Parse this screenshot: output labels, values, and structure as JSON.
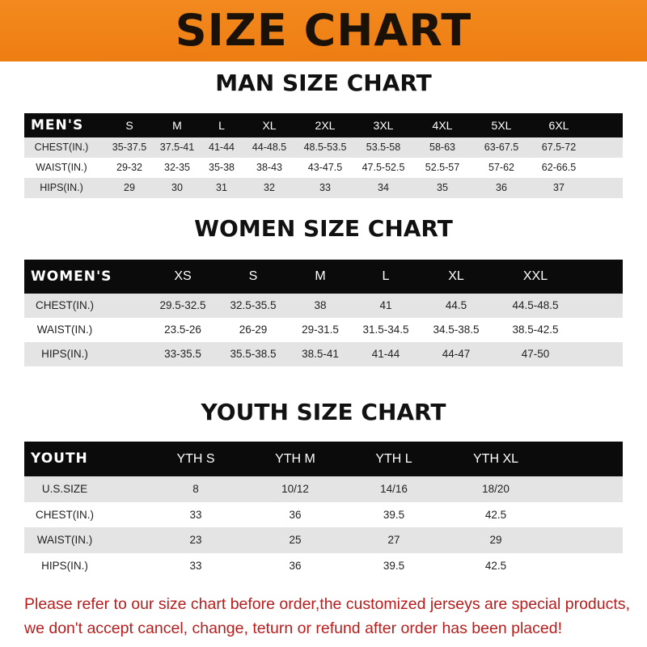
{
  "banner": {
    "title": "SIZE CHART",
    "color": "#f08418"
  },
  "men": {
    "title": "MAN SIZE CHART",
    "header": [
      "MEN'S",
      "S",
      "M",
      "L",
      "XL",
      "2XL",
      "3XL",
      "4XL",
      "5XL",
      "6XL"
    ],
    "rows": [
      [
        "CHEST(IN.)",
        "35-37.5",
        "37.5-41",
        "41-44",
        "44-48.5",
        "48.5-53.5",
        "53.5-58",
        "58-63",
        "63-67.5",
        "67.5-72"
      ],
      [
        "WAIST(IN.)",
        "29-32",
        "32-35",
        "35-38",
        "38-43",
        "43-47.5",
        "47.5-52.5",
        "52.5-57",
        "57-62",
        "62-66.5"
      ],
      [
        "HIPS(IN.)",
        "29",
        "30",
        "31",
        "32",
        "33",
        "34",
        "35",
        "36",
        "37"
      ]
    ]
  },
  "women": {
    "title": "WOMEN SIZE CHART",
    "header": [
      "WOMEN'S",
      "XS",
      "S",
      "M",
      "L",
      "XL",
      "XXL"
    ],
    "rows": [
      [
        "CHEST(IN.)",
        "29.5-32.5",
        "32.5-35.5",
        "38",
        "41",
        "44.5",
        "44.5-48.5"
      ],
      [
        "WAIST(IN.)",
        "23.5-26",
        "26-29",
        "29-31.5",
        "31.5-34.5",
        "34.5-38.5",
        "38.5-42.5"
      ],
      [
        "HIPS(IN.)",
        "33-35.5",
        "35.5-38.5",
        "38.5-41",
        "41-44",
        "44-47",
        "47-50"
      ]
    ]
  },
  "youth": {
    "title": "YOUTH SIZE CHART",
    "header": [
      "YOUTH",
      "YTH S",
      "YTH M",
      "YTH L",
      "YTH XL"
    ],
    "rows": [
      [
        "U.S.SIZE",
        "8",
        "10/12",
        "14/16",
        "18/20"
      ],
      [
        "CHEST(IN.)",
        "33",
        "36",
        "39.5",
        "42.5"
      ],
      [
        "WAIST(IN.)",
        "23",
        "25",
        "27",
        "29"
      ],
      [
        "HIPS(IN.)",
        "33",
        "36",
        "39.5",
        "42.5"
      ]
    ]
  },
  "notice": {
    "line1": "Please refer to our size chart before order,the customized jerseys are special products,",
    "line2": "we don't accept cancel, change, teturn or refund after order has been placed!",
    "color": "#b81d1d"
  }
}
